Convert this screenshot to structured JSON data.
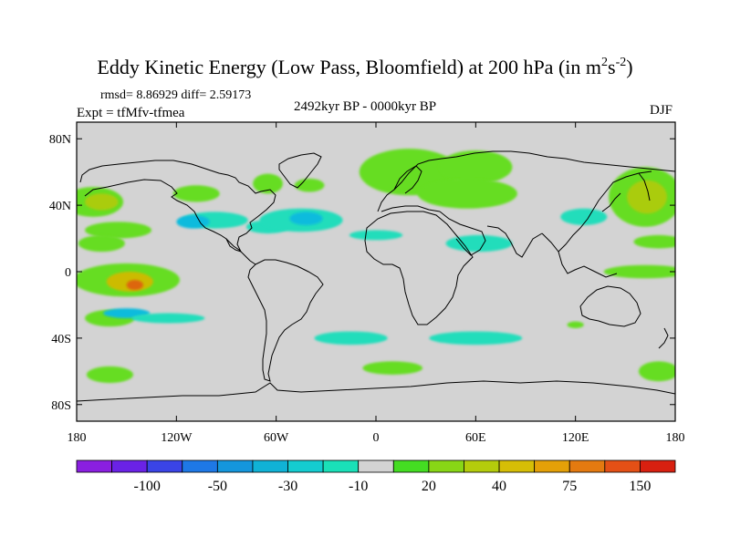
{
  "title": {
    "main": "Eddy Kinetic Energy (Low Pass, Bloomfield) at 200 hPa (in m",
    "sup1": "2",
    "mid": "s",
    "sup2": "-2",
    "end": ")"
  },
  "stats": "rmsd= 8.86929 diff= 2.59173",
  "expt": "Expt = tfMfv-tfmea",
  "period": "2492kyr BP - 0000kyr BP",
  "season": "DJF",
  "map": {
    "lon_range": [
      -180,
      180
    ],
    "lat_range": [
      -90,
      90
    ],
    "x_ticks": [
      {
        "lon": -180,
        "label": "180"
      },
      {
        "lon": -120,
        "label": "120W"
      },
      {
        "lon": -60,
        "label": "60W"
      },
      {
        "lon": 0,
        "label": "0"
      },
      {
        "lon": 60,
        "label": "60E"
      },
      {
        "lon": 120,
        "label": "120E"
      },
      {
        "lon": 180,
        "label": "180"
      }
    ],
    "y_ticks": [
      {
        "lat": 80,
        "label": "80N"
      },
      {
        "lat": 40,
        "label": "40N"
      },
      {
        "lat": 0,
        "label": "0"
      },
      {
        "lat": -40,
        "label": "40S"
      },
      {
        "lat": -80,
        "label": "80S"
      }
    ],
    "background_color": "#d3d3d3",
    "anomaly_regions": [
      {
        "lon": -170,
        "lat": 42,
        "rlon": 18,
        "rlat": 9,
        "color": "#66dd22"
      },
      {
        "lon": -165,
        "lat": 42,
        "rlon": 10,
        "rlat": 5,
        "color": "#aacc11"
      },
      {
        "lon": -155,
        "lat": 25,
        "rlon": 20,
        "rlat": 5,
        "color": "#66dd22"
      },
      {
        "lon": -165,
        "lat": 17,
        "rlon": 14,
        "rlat": 5,
        "color": "#66dd22"
      },
      {
        "lon": -150,
        "lat": -5,
        "rlon": 32,
        "rlat": 10,
        "color": "#66dd22"
      },
      {
        "lon": -148,
        "lat": -6,
        "rlon": 14,
        "rlat": 6,
        "color": "#ccbb00"
      },
      {
        "lon": -145,
        "lat": -8,
        "rlon": 5,
        "rlat": 3,
        "color": "#dd6611"
      },
      {
        "lon": -160,
        "lat": -28,
        "rlon": 15,
        "rlat": 5,
        "color": "#66dd22"
      },
      {
        "lon": -160,
        "lat": -62,
        "rlon": 14,
        "rlat": 5,
        "color": "#66dd22"
      },
      {
        "lon": -108,
        "lat": 47,
        "rlon": 14,
        "rlat": 5,
        "color": "#66dd22"
      },
      {
        "lon": -65,
        "lat": 53,
        "rlon": 9,
        "rlat": 6,
        "color": "#66dd22"
      },
      {
        "lon": -40,
        "lat": 52,
        "rlon": 9,
        "rlat": 4,
        "color": "#66dd22"
      },
      {
        "lon": -97,
        "lat": 31,
        "rlon": 20,
        "rlat": 5,
        "color": "#22ddbb"
      },
      {
        "lon": -110,
        "lat": 30,
        "rlon": 10,
        "rlat": 4,
        "color": "#11bbdd"
      },
      {
        "lon": -65,
        "lat": 27,
        "rlon": 13,
        "rlat": 4,
        "color": "#22ddbb"
      },
      {
        "lon": -45,
        "lat": 31,
        "rlon": 25,
        "rlat": 7,
        "color": "#22ddbb"
      },
      {
        "lon": -42,
        "lat": 32,
        "rlon": 10,
        "rlat": 4,
        "color": "#11bbdd"
      },
      {
        "lon": 0,
        "lat": 22,
        "rlon": 16,
        "rlat": 3,
        "color": "#22ddbb"
      },
      {
        "lon": 20,
        "lat": 60,
        "rlon": 30,
        "rlat": 14,
        "color": "#66dd22"
      },
      {
        "lon": 60,
        "lat": 63,
        "rlon": 22,
        "rlat": 10,
        "color": "#66dd22"
      },
      {
        "lon": 55,
        "lat": 47,
        "rlon": 30,
        "rlat": 9,
        "color": "#66dd22"
      },
      {
        "lon": 62,
        "lat": 17,
        "rlon": 20,
        "rlat": 5,
        "color": "#22ddbb"
      },
      {
        "lon": 125,
        "lat": 33,
        "rlon": 14,
        "rlat": 5,
        "color": "#22ddbb"
      },
      {
        "lon": 162,
        "lat": 45,
        "rlon": 22,
        "rlat": 18,
        "color": "#66dd22"
      },
      {
        "lon": 163,
        "lat": 45,
        "rlon": 12,
        "rlat": 10,
        "color": "#aacc11"
      },
      {
        "lon": 170,
        "lat": 18,
        "rlon": 15,
        "rlat": 4,
        "color": "#66dd22"
      },
      {
        "lon": 162,
        "lat": 0,
        "rlon": 25,
        "rlat": 4,
        "color": "#66dd22"
      },
      {
        "lon": -150,
        "lat": -25,
        "rlon": 14,
        "rlat": 3,
        "color": "#11bbdd"
      },
      {
        "lon": -125,
        "lat": -28,
        "rlon": 22,
        "rlat": 3,
        "color": "#22ddbb"
      },
      {
        "lon": -15,
        "lat": -40,
        "rlon": 22,
        "rlat": 4,
        "color": "#22ddbb"
      },
      {
        "lon": 60,
        "lat": -40,
        "rlon": 28,
        "rlat": 4,
        "color": "#22ddbb"
      },
      {
        "lon": 10,
        "lat": -58,
        "rlon": 18,
        "rlat": 4,
        "color": "#66dd22"
      },
      {
        "lon": 170,
        "lat": -60,
        "rlon": 12,
        "rlat": 6,
        "color": "#66dd22"
      },
      {
        "lon": 120,
        "lat": -32,
        "rlon": 5,
        "rlat": 2,
        "color": "#66dd22"
      }
    ]
  },
  "colorbar": {
    "colors": [
      "#8a1fe0",
      "#6a22e6",
      "#3a44e6",
      "#1e78e6",
      "#1496dc",
      "#10b2d6",
      "#14ccd0",
      "#1ae0b8",
      "#d3d3d3",
      "#44dd22",
      "#88d616",
      "#b4cc0c",
      "#d6be06",
      "#e4a008",
      "#e47a10",
      "#e45016",
      "#d82010"
    ],
    "labels": [
      {
        "after_box": 2,
        "text": "-100"
      },
      {
        "after_box": 4,
        "text": "-50"
      },
      {
        "after_box": 6,
        "text": "-30"
      },
      {
        "after_box": 8,
        "text": "-10"
      },
      {
        "after_box": 10,
        "text": "20"
      },
      {
        "after_box": 12,
        "text": "40"
      },
      {
        "after_box": 14,
        "text": "75"
      },
      {
        "after_box": 16,
        "text": "150"
      }
    ]
  }
}
